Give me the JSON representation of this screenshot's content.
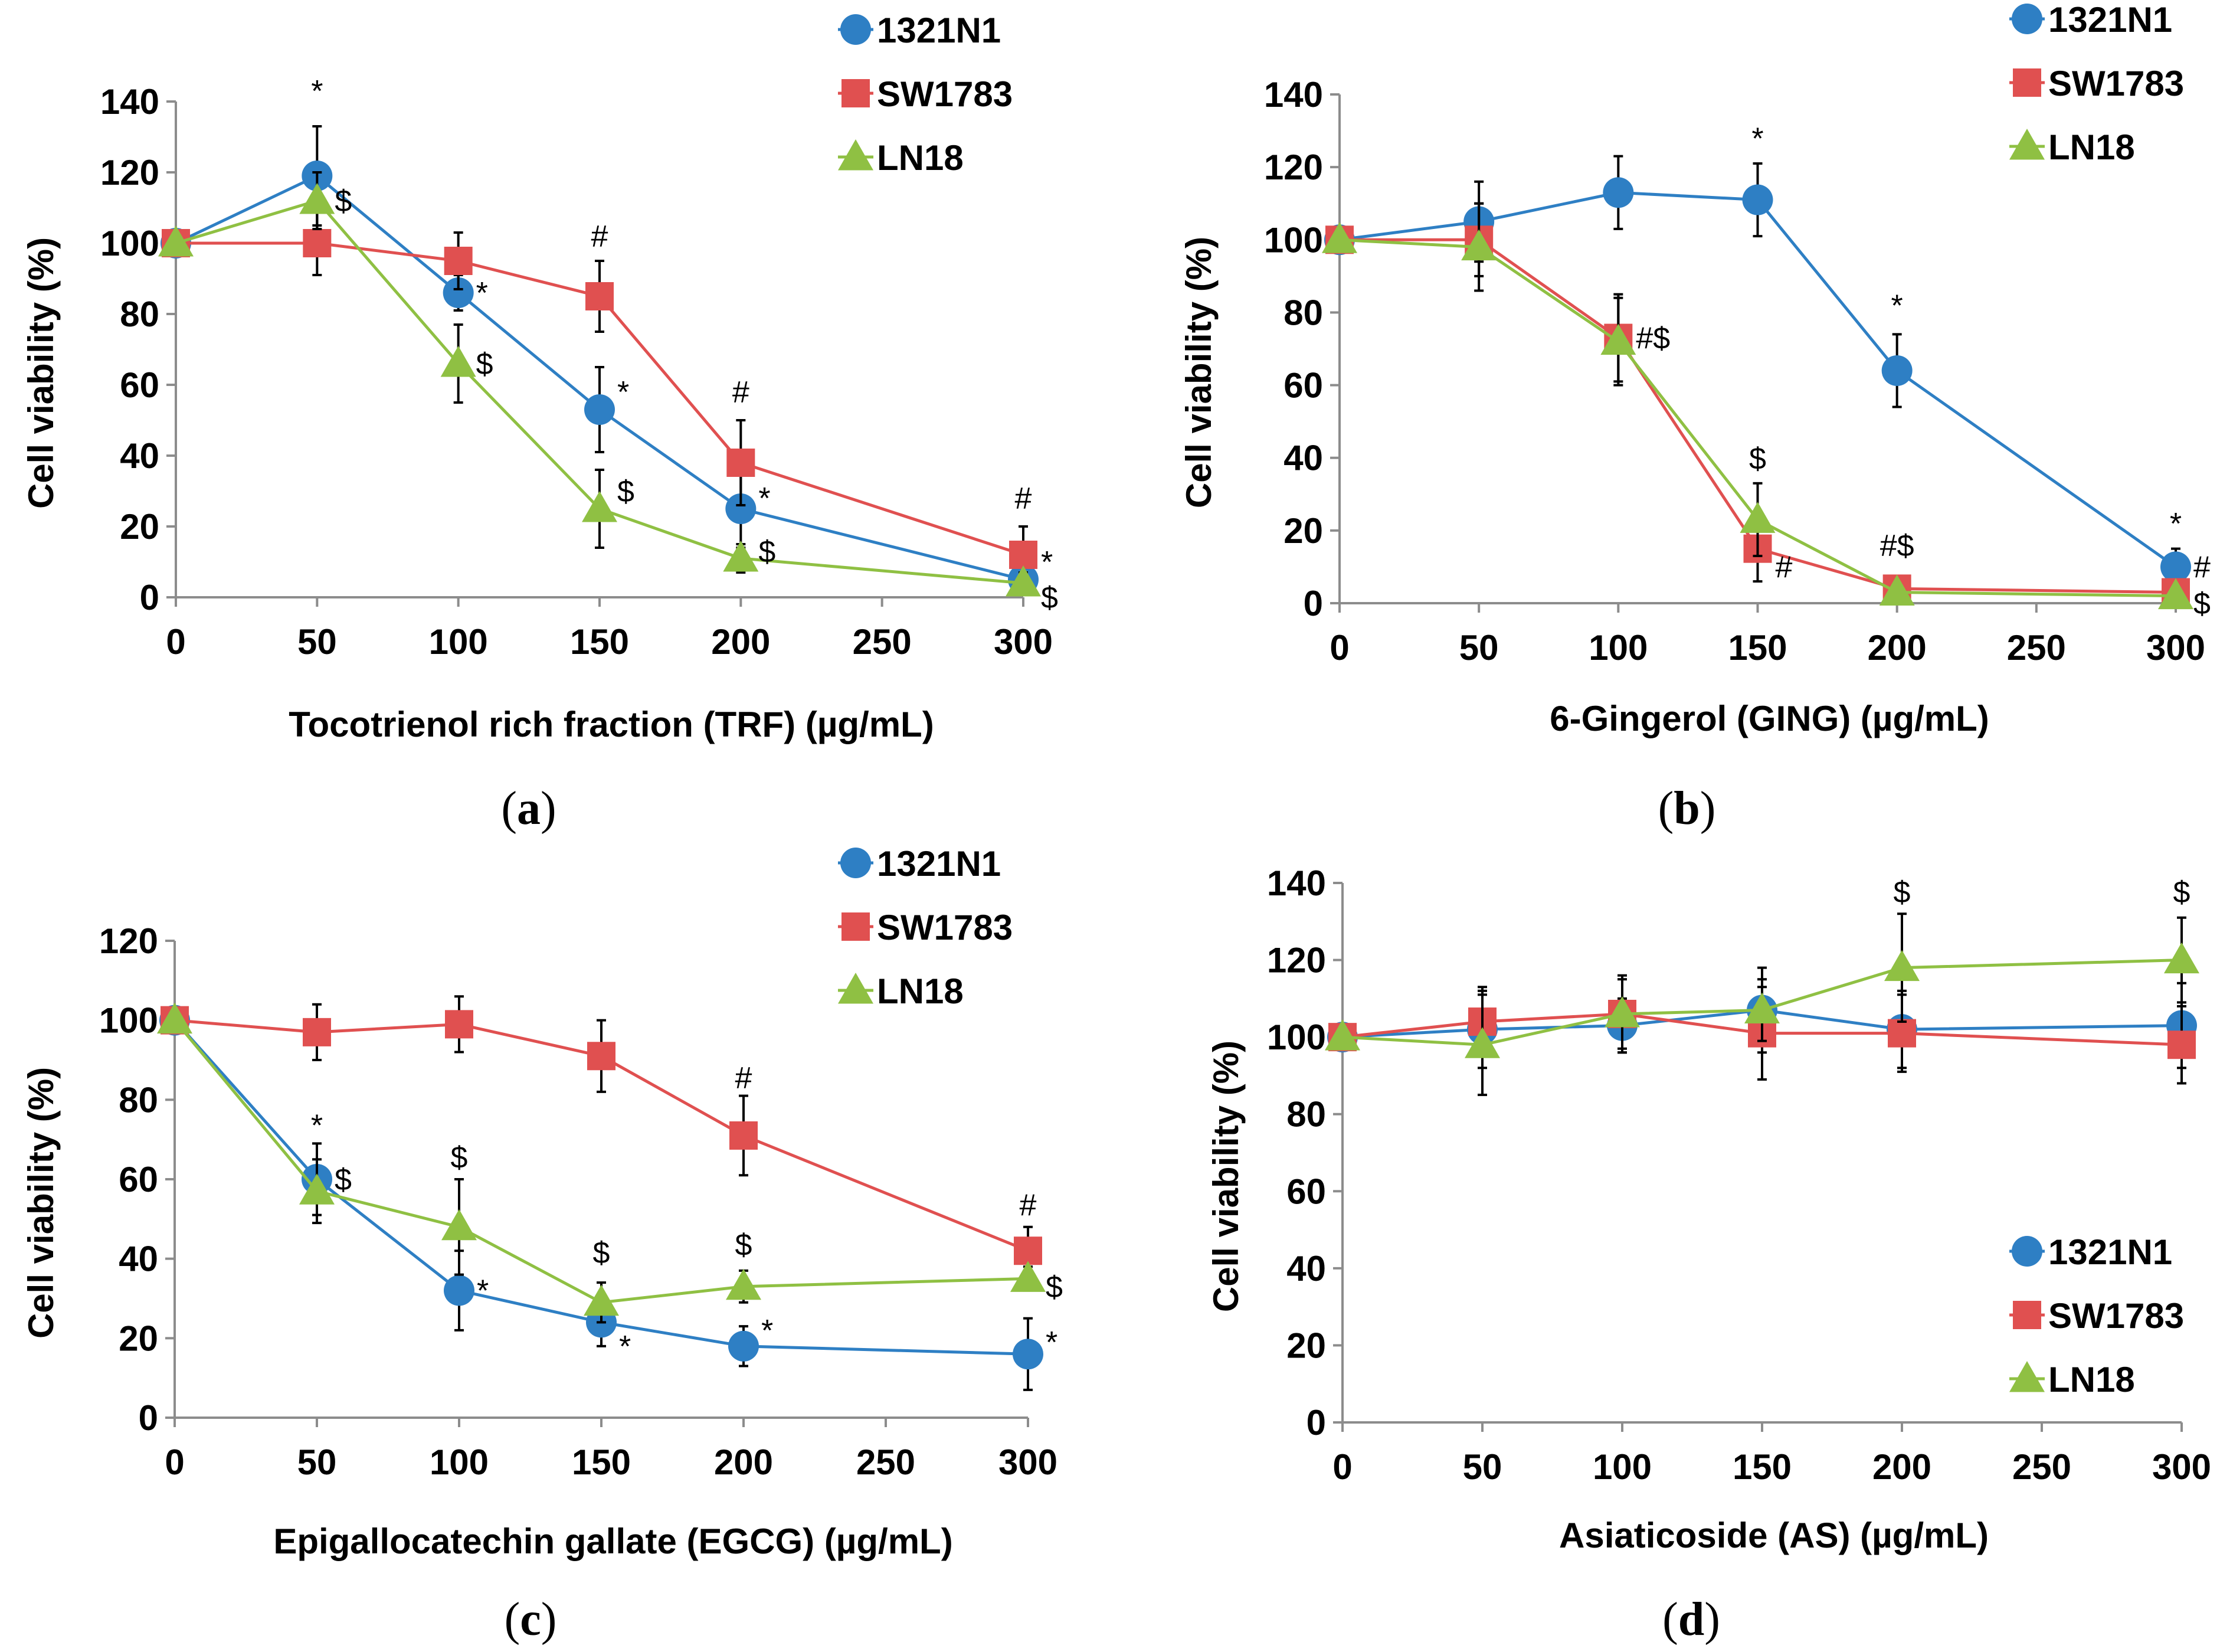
{
  "chart_data": [
    {
      "type": "line",
      "panel_label": "a",
      "xlabel": "Tocotrienol rich fraction (TRF) (µg/mL)",
      "ylabel": "Cell viability (%)",
      "x": [
        0,
        50,
        100,
        150,
        200,
        300
      ],
      "x_ticks": [
        0,
        50,
        100,
        150,
        200,
        250,
        300
      ],
      "xlim": [
        0,
        300
      ],
      "ylim": [
        0,
        140
      ],
      "y_ticks": [
        0,
        20,
        40,
        60,
        80,
        100,
        120,
        140
      ],
      "grid": false,
      "legend_position": "top-right",
      "series": [
        {
          "name": "1321N1",
          "color": "#2e7fc4",
          "marker": "circle",
          "values": [
            100,
            119,
            86,
            53,
            25,
            5
          ],
          "errors": [
            0,
            14,
            5,
            12,
            11,
            4
          ]
        },
        {
          "name": "SW1783",
          "color": "#e05050",
          "marker": "square",
          "values": [
            100,
            100,
            95,
            85,
            38,
            12
          ],
          "errors": [
            0,
            9,
            8,
            10,
            12,
            8
          ]
        },
        {
          "name": "LN18",
          "color": "#8fc043",
          "marker": "triangle",
          "values": [
            100,
            112,
            66,
            25,
            11,
            4
          ],
          "errors": [
            0,
            8,
            11,
            11,
            4,
            3
          ]
        }
      ],
      "annotations": [
        {
          "text": "*",
          "x": 50,
          "y": 139,
          "offset": "above"
        },
        {
          "text": "$",
          "x": 50,
          "y": 112,
          "offset": "right"
        },
        {
          "text": "*",
          "x": 100,
          "y": 86,
          "offset": "right"
        },
        {
          "text": "$",
          "x": 100,
          "y": 66,
          "offset": "right"
        },
        {
          "text": "#",
          "x": 150,
          "y": 98,
          "offset": "above"
        },
        {
          "text": "*",
          "x": 150,
          "y": 58,
          "offset": "right"
        },
        {
          "text": "$",
          "x": 150,
          "y": 30,
          "offset": "right"
        },
        {
          "text": "#",
          "x": 200,
          "y": 54,
          "offset": "above"
        },
        {
          "text": "*",
          "x": 200,
          "y": 28,
          "offset": "right"
        },
        {
          "text": "$",
          "x": 200,
          "y": 13,
          "offset": "right"
        },
        {
          "text": "#",
          "x": 300,
          "y": 24,
          "offset": "above"
        },
        {
          "text": "*",
          "x": 300,
          "y": 10,
          "offset": "right"
        },
        {
          "text": "$",
          "x": 300,
          "y": 0,
          "offset": "right"
        }
      ]
    },
    {
      "type": "line",
      "panel_label": "b",
      "xlabel": "6-Gingerol (GING) (µg/mL)",
      "ylabel": "Cell viability (%)",
      "x": [
        0,
        50,
        100,
        150,
        200,
        300
      ],
      "x_ticks": [
        0,
        50,
        100,
        150,
        200,
        250,
        300
      ],
      "xlim": [
        0,
        300
      ],
      "ylim": [
        0,
        140
      ],
      "y_ticks": [
        0,
        20,
        40,
        60,
        80,
        100,
        120,
        140
      ],
      "grid": false,
      "legend_position": "top-right",
      "series": [
        {
          "name": "1321N1",
          "color": "#2e7fc4",
          "marker": "circle",
          "values": [
            100,
            105,
            113,
            111,
            64,
            10
          ],
          "errors": [
            0,
            11,
            10,
            10,
            10,
            5
          ]
        },
        {
          "name": "SW1783",
          "color": "#e05050",
          "marker": "square",
          "values": [
            100,
            100,
            73,
            15,
            4,
            3
          ],
          "errors": [
            0,
            10,
            12,
            9,
            2,
            2
          ]
        },
        {
          "name": "LN18",
          "color": "#8fc043",
          "marker": "triangle",
          "values": [
            100,
            98,
            72,
            23,
            3,
            2
          ],
          "errors": [
            0,
            12,
            12,
            10,
            2,
            1
          ]
        }
      ],
      "annotations": [
        {
          "text": "*",
          "x": 150,
          "y": 124,
          "offset": "above"
        },
        {
          "text": "#$",
          "x": 100,
          "y": 73,
          "offset": "right"
        },
        {
          "text": "*",
          "x": 200,
          "y": 78,
          "offset": "above"
        },
        {
          "text": "$",
          "x": 150,
          "y": 36,
          "offset": "above"
        },
        {
          "text": "#",
          "x": 150,
          "y": 10,
          "offset": "right"
        },
        {
          "text": "#$",
          "x": 200,
          "y": 12,
          "offset": "above"
        },
        {
          "text": "*",
          "x": 300,
          "y": 18,
          "offset": "above"
        },
        {
          "text": "#",
          "x": 300,
          "y": 10,
          "offset": "right"
        },
        {
          "text": "$",
          "x": 300,
          "y": 0,
          "offset": "right"
        }
      ]
    },
    {
      "type": "line",
      "panel_label": "c",
      "xlabel": "Epigallocatechin gallate (EGCG) (µg/mL)",
      "ylabel": "Cell viability (%)",
      "x": [
        0,
        50,
        100,
        150,
        200,
        300
      ],
      "x_ticks": [
        0,
        50,
        100,
        150,
        200,
        250,
        300
      ],
      "xlim": [
        0,
        300
      ],
      "ylim": [
        0,
        120
      ],
      "y_ticks": [
        0,
        20,
        40,
        60,
        80,
        100,
        120
      ],
      "grid": false,
      "legend_position": "top-right",
      "series": [
        {
          "name": "1321N1",
          "color": "#2e7fc4",
          "marker": "circle",
          "values": [
            100,
            60,
            32,
            24,
            18,
            16
          ],
          "errors": [
            0,
            9,
            10,
            6,
            5,
            9
          ]
        },
        {
          "name": "SW1783",
          "color": "#e05050",
          "marker": "square",
          "values": [
            100,
            97,
            99,
            91,
            71,
            42
          ],
          "errors": [
            0,
            7,
            7,
            9,
            10,
            6
          ]
        },
        {
          "name": "LN18",
          "color": "#8fc043",
          "marker": "triangle",
          "values": [
            100,
            57,
            48,
            29,
            33,
            35
          ],
          "errors": [
            0,
            8,
            12,
            5,
            4,
            3
          ]
        }
      ],
      "annotations": [
        {
          "text": "*",
          "x": 50,
          "y": 70,
          "offset": "above"
        },
        {
          "text": "$",
          "x": 50,
          "y": 60,
          "offset": "right"
        },
        {
          "text": "$",
          "x": 100,
          "y": 62,
          "offset": "above"
        },
        {
          "text": "*",
          "x": 100,
          "y": 32,
          "offset": "right"
        },
        {
          "text": "$",
          "x": 150,
          "y": 38,
          "offset": "above"
        },
        {
          "text": "*",
          "x": 150,
          "y": 18,
          "offset": "right"
        },
        {
          "text": "$",
          "x": 200,
          "y": 40,
          "offset": "above"
        },
        {
          "text": "*",
          "x": 200,
          "y": 22,
          "offset": "right"
        },
        {
          "text": "#",
          "x": 200,
          "y": 82,
          "offset": "above"
        },
        {
          "text": "#",
          "x": 300,
          "y": 50,
          "offset": "above"
        },
        {
          "text": "$",
          "x": 300,
          "y": 33,
          "offset": "right"
        },
        {
          "text": "*",
          "x": 300,
          "y": 19,
          "offset": "right"
        }
      ]
    },
    {
      "type": "line",
      "panel_label": "d",
      "xlabel": "Asiaticoside (AS) (µg/mL)",
      "ylabel": "Cell viability (%)",
      "x": [
        0,
        50,
        100,
        150,
        200,
        300
      ],
      "x_ticks": [
        0,
        50,
        100,
        150,
        200,
        250,
        300
      ],
      "xlim": [
        0,
        300
      ],
      "ylim": [
        0,
        140
      ],
      "y_ticks": [
        0,
        20,
        40,
        60,
        80,
        100,
        120,
        140
      ],
      "grid": false,
      "legend_position": "bottom-right",
      "series": [
        {
          "name": "1321N1",
          "color": "#2e7fc4",
          "marker": "circle",
          "values": [
            100,
            102,
            103,
            107,
            102,
            103
          ],
          "errors": [
            0,
            10,
            7,
            11,
            10,
            11
          ]
        },
        {
          "name": "SW1783",
          "color": "#e05050",
          "marker": "square",
          "values": [
            100,
            104,
            106,
            101,
            101,
            98
          ],
          "errors": [
            0,
            9,
            10,
            12,
            10,
            10
          ]
        },
        {
          "name": "LN18",
          "color": "#8fc043",
          "marker": "triangle",
          "values": [
            100,
            98,
            106,
            107,
            118,
            120
          ],
          "errors": [
            0,
            13,
            9,
            8,
            14,
            11
          ]
        }
      ],
      "annotations": [
        {
          "text": "$",
          "x": 200,
          "y": 134,
          "offset": "above"
        },
        {
          "text": "$",
          "x": 300,
          "y": 134,
          "offset": "above"
        }
      ]
    }
  ]
}
